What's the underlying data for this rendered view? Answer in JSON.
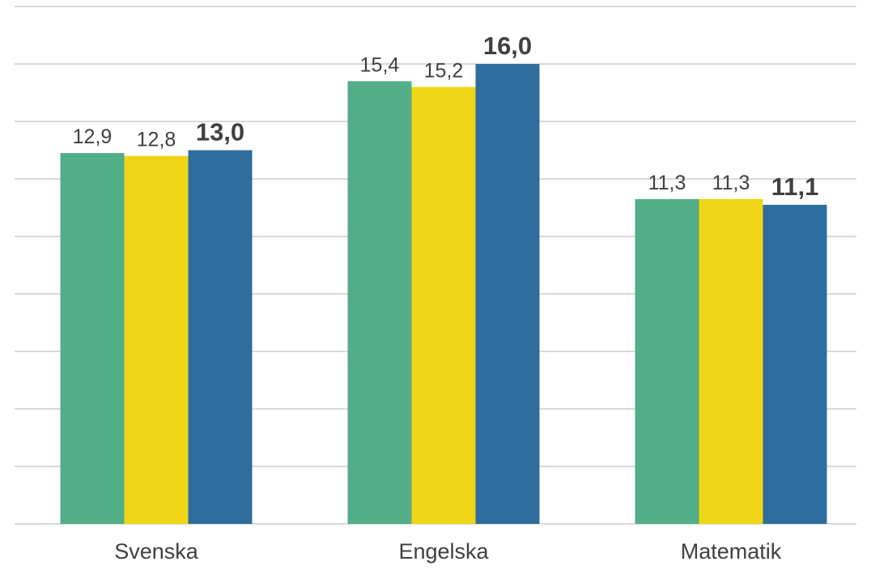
{
  "chart_data": {
    "type": "bar",
    "categories": [
      "Svenska",
      "Engelska",
      "Matematik"
    ],
    "series": [
      {
        "values": [
          12.9,
          15.4,
          11.3
        ],
        "color": "#52ae89",
        "label_style": "normal"
      },
      {
        "values": [
          12.8,
          15.2,
          11.3
        ],
        "color": "#efd516",
        "label_style": "normal"
      },
      {
        "values": [
          13.0,
          16.0,
          11.1
        ],
        "color": "#2e6d9e",
        "label_style": "bold"
      }
    ],
    "data_labels": [
      [
        "12,9",
        "15,4",
        "11,3"
      ],
      [
        "12,8",
        "15,2",
        "11,3"
      ],
      [
        "13,0",
        "16,0",
        "11,1"
      ]
    ],
    "ylim": [
      0,
      20
    ],
    "grid": true,
    "legend": "none",
    "title": "",
    "xlabel": "",
    "ylabel": ""
  }
}
